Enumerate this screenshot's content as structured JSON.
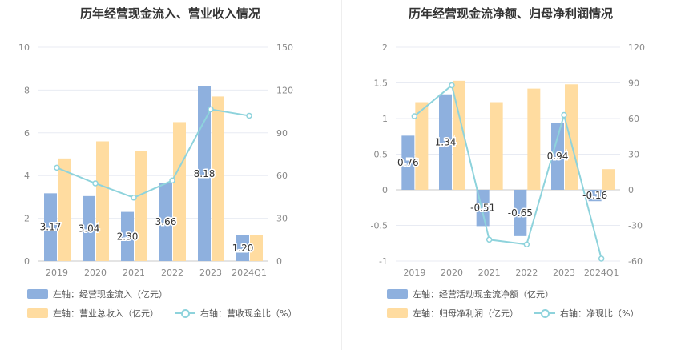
{
  "colors": {
    "bar_primary": "#8eb0de",
    "bar_secondary": "#ffdca0",
    "line": "#8ed3dc",
    "grid": "#e8ebf3",
    "axis_text": "#888888"
  },
  "chart_data": [
    {
      "type": "bar+line",
      "title": "历年经营现金流入、营业收入情况",
      "categories": [
        "2019",
        "2020",
        "2021",
        "2022",
        "2023",
        "2024Q1"
      ],
      "left_axis": {
        "ticks": [
          "0",
          "2",
          "4",
          "6",
          "8",
          "10"
        ],
        "range": [
          0,
          10
        ]
      },
      "right_axis": {
        "ticks": [
          "0",
          "30",
          "60",
          "90",
          "120",
          "150"
        ],
        "range": [
          0,
          150
        ]
      },
      "series": [
        {
          "name": "左轴：经营现金流入（亿元）",
          "kind": "bar",
          "axis": "left",
          "color": "#8eb0de",
          "values": [
            3.17,
            3.04,
            2.3,
            3.66,
            8.18,
            1.2
          ],
          "labels": [
            "3.17",
            "3.04",
            "2.30",
            "3.66",
            "8.18",
            "1.20"
          ]
        },
        {
          "name": "左轴：营业总收入（亿元）",
          "kind": "bar",
          "axis": "left",
          "color": "#ffdca0",
          "values": [
            4.8,
            5.6,
            5.15,
            6.5,
            7.7,
            1.2
          ]
        },
        {
          "name": "右轴：营收现金比（%）",
          "kind": "line",
          "axis": "right",
          "color": "#8ed3dc",
          "values": [
            65.5,
            54.5,
            44.5,
            56.5,
            106.5,
            102
          ]
        }
      ]
    },
    {
      "type": "bar+line",
      "title": "历年经营现金流净额、归母净利润情况",
      "categories": [
        "2019",
        "2020",
        "2021",
        "2022",
        "2023",
        "2024Q1"
      ],
      "left_axis": {
        "ticks": [
          "-1",
          "-0.5",
          "0",
          "0.5",
          "1",
          "1.5",
          "2"
        ],
        "range": [
          -1,
          2
        ]
      },
      "right_axis": {
        "ticks": [
          "-60",
          "-30",
          "0",
          "30",
          "60",
          "90",
          "120"
        ],
        "range": [
          -60,
          120
        ]
      },
      "series": [
        {
          "name": "左轴：经营活动现金流净额（亿元）",
          "kind": "bar",
          "axis": "left",
          "color": "#8eb0de",
          "values": [
            0.76,
            1.34,
            -0.51,
            -0.65,
            0.94,
            -0.16
          ],
          "labels": [
            "0.76",
            "1.34",
            "-0.51",
            "-0.65",
            "0.94",
            "-0.16"
          ]
        },
        {
          "name": "左轴：归母净利润（亿元）",
          "kind": "bar",
          "axis": "left",
          "color": "#ffdca0",
          "values": [
            1.23,
            1.53,
            1.23,
            1.42,
            1.48,
            0.29
          ]
        },
        {
          "name": "右轴：净现比（%）",
          "kind": "line",
          "axis": "right",
          "color": "#8ed3dc",
          "values": [
            62,
            88,
            -42,
            -46,
            63,
            -58
          ]
        }
      ]
    }
  ]
}
